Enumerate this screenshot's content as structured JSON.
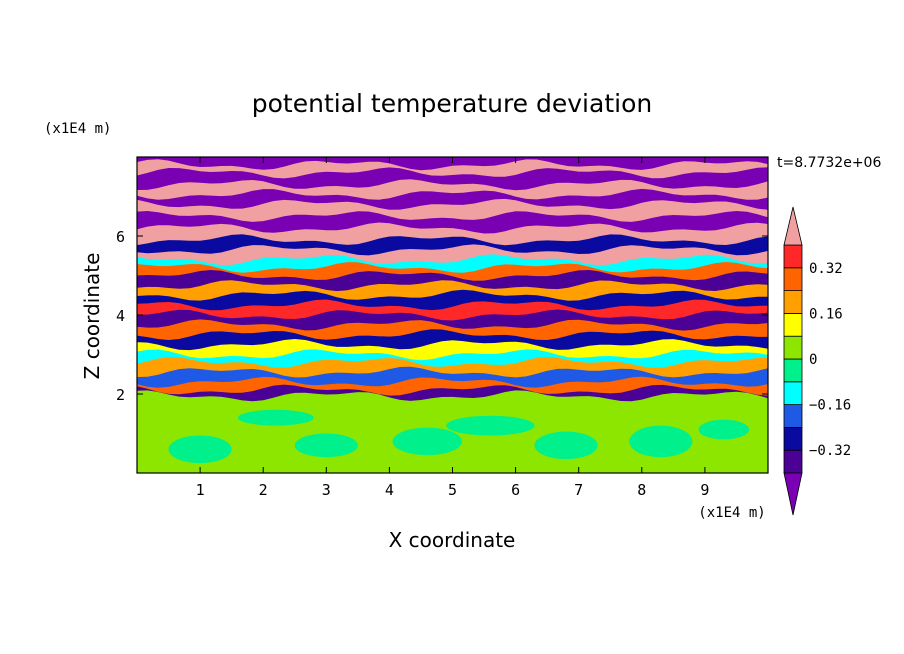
{
  "chart_data": {
    "type": "heatmap",
    "title": "potential temperature deviation",
    "xlabel": "X coordinate",
    "ylabel": "Z coordinate",
    "x_unit": "(x1E4 m)",
    "y_unit": "(x1E4 m)",
    "time_label": "t=8.7732e+06",
    "xlim": [
      0,
      10
    ],
    "ylim": [
      0,
      8
    ],
    "x_ticks": [
      1,
      2,
      3,
      4,
      5,
      6,
      7,
      8,
      9
    ],
    "y_ticks": [
      2,
      4,
      6
    ],
    "colorbar": {
      "levels": [
        -0.4,
        -0.32,
        -0.24,
        -0.16,
        -0.08,
        0,
        0.08,
        0.16,
        0.24,
        0.32,
        0.4
      ],
      "labels": [
        "0.32",
        "0.16",
        "0",
        "−0.16",
        "−0.32"
      ],
      "label_values": [
        0.32,
        0.16,
        0,
        -0.16,
        -0.32
      ],
      "colors": [
        "#7a00b4",
        "#4b0096",
        "#0a0aa0",
        "#1e5ae6",
        "#00ffff",
        "#00f08c",
        "#8ce600",
        "#ffff00",
        "#ffa000",
        "#ff6400",
        "#ff2828",
        "#f0a0a0"
      ],
      "extend": "both"
    },
    "bands": [
      {
        "z": 0.0,
        "value": 0.04
      },
      {
        "z": 1.95,
        "value": -0.4
      },
      {
        "z": 2.1,
        "value": 0.3
      },
      {
        "z": 2.3,
        "value": -0.2
      },
      {
        "z": 2.55,
        "value": 0.2
      },
      {
        "z": 2.8,
        "value": -0.1
      },
      {
        "z": 3.0,
        "value": 0.15
      },
      {
        "z": 3.25,
        "value": -0.3
      },
      {
        "z": 3.5,
        "value": 0.25
      },
      {
        "z": 3.75,
        "value": -0.35
      },
      {
        "z": 4.0,
        "value": 0.35
      },
      {
        "z": 4.25,
        "value": -0.25
      },
      {
        "z": 4.5,
        "value": 0.2
      },
      {
        "z": 4.75,
        "value": -0.35
      },
      {
        "z": 5.0,
        "value": 0.3
      },
      {
        "z": 5.2,
        "value": -0.1
      },
      {
        "z": 5.4,
        "value": 0.42
      },
      {
        "z": 5.65,
        "value": -0.3
      },
      {
        "z": 5.9,
        "value": 0.42
      },
      {
        "z": 6.2,
        "value": -0.42
      },
      {
        "z": 6.5,
        "value": 0.42
      },
      {
        "z": 6.8,
        "value": -0.42
      },
      {
        "z": 7.05,
        "value": 0.42
      },
      {
        "z": 7.3,
        "value": -0.42
      },
      {
        "z": 7.6,
        "value": 0.42
      },
      {
        "z": 7.8,
        "value": -0.42
      }
    ]
  }
}
